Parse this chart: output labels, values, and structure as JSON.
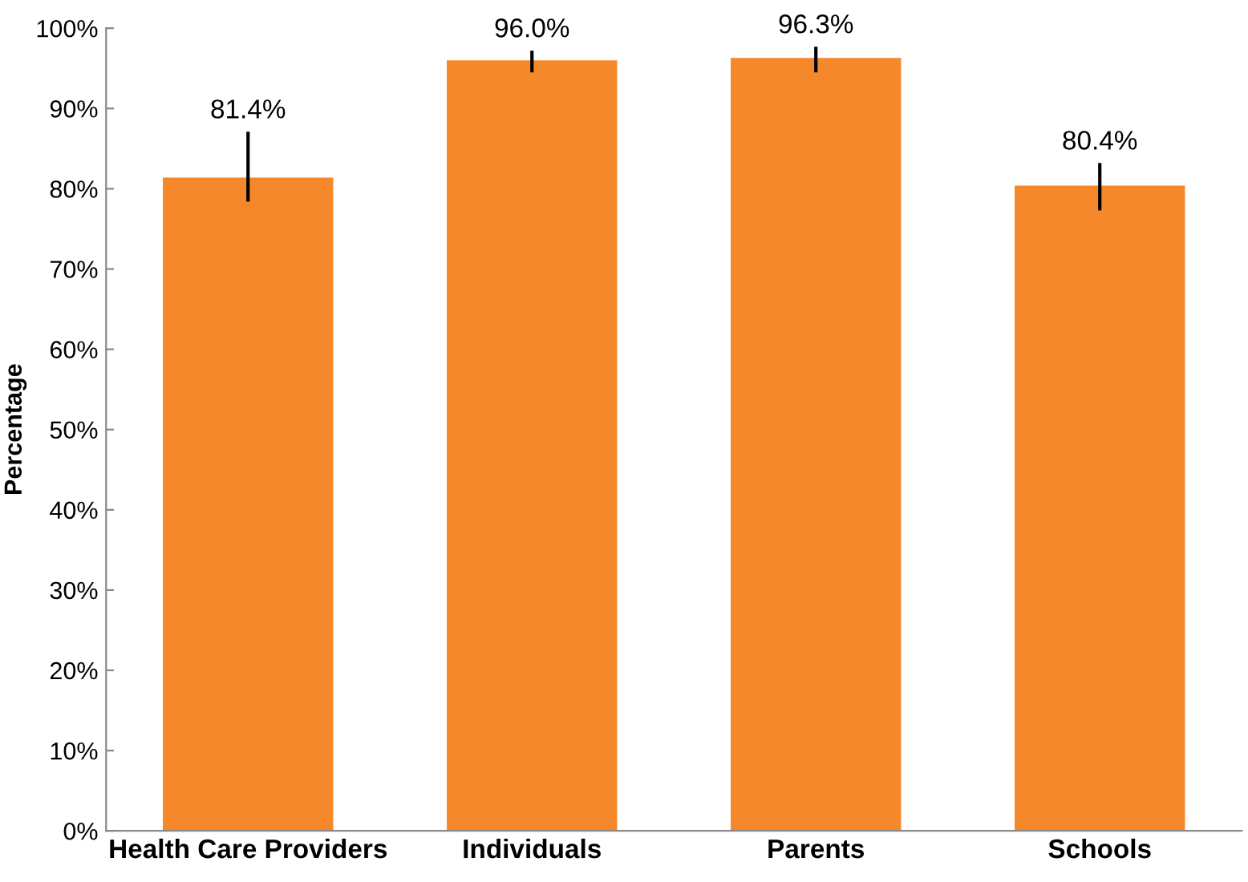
{
  "chart_data": {
    "type": "bar",
    "ylabel": "Percentage",
    "categories": [
      "Health Care Providers",
      "Individuals",
      "Parents",
      "Schools"
    ],
    "values": [
      81.4,
      96.0,
      96.3,
      80.4
    ],
    "errors": [
      [
        78.4,
        87.1
      ],
      [
        94.5,
        97.2
      ],
      [
        94.5,
        97.7
      ],
      [
        77.3,
        83.2
      ]
    ],
    "value_labels": [
      "81.4%",
      "96.0%",
      "96.3%",
      "80.4%"
    ],
    "color": "#f5882a",
    "ylim": [
      0,
      100
    ],
    "yticks": [
      {
        "value": 0,
        "label": "0%"
      },
      {
        "value": 10,
        "label": "10%"
      },
      {
        "value": 20,
        "label": "20%"
      },
      {
        "value": 30,
        "label": "30%"
      },
      {
        "value": 40,
        "label": "40%"
      },
      {
        "value": 50,
        "label": "50%"
      },
      {
        "value": 60,
        "label": "60%"
      },
      {
        "value": 70,
        "label": "70%"
      },
      {
        "value": 80,
        "label": "80%"
      },
      {
        "value": 90,
        "label": "90%"
      },
      {
        "value": 100,
        "label": "100%"
      }
    ],
    "grid": false,
    "legend": false
  }
}
